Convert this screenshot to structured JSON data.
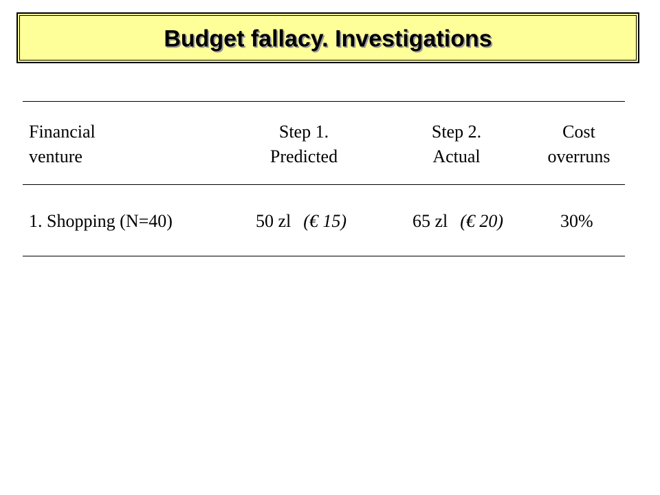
{
  "title": "Budget fallacy. Investigations",
  "table": {
    "headers": [
      {
        "line1": "Financial",
        "line2": "venture"
      },
      {
        "line1": "Step 1.",
        "line2": "Predicted"
      },
      {
        "line1": "Step 2.",
        "line2": "Actual"
      },
      {
        "line1": "Cost",
        "line2": "overruns"
      }
    ],
    "rows": [
      {
        "venture": "1. Shopping (N=40)",
        "predicted": "50 zl",
        "predicted_eur": "(€ 15)",
        "actual": "65 zl",
        "actual_eur": "(€ 20)",
        "overrun": "30%"
      }
    ]
  },
  "colors": {
    "title_background": "#ffff99",
    "title_shadow": "#9a9a9a"
  }
}
